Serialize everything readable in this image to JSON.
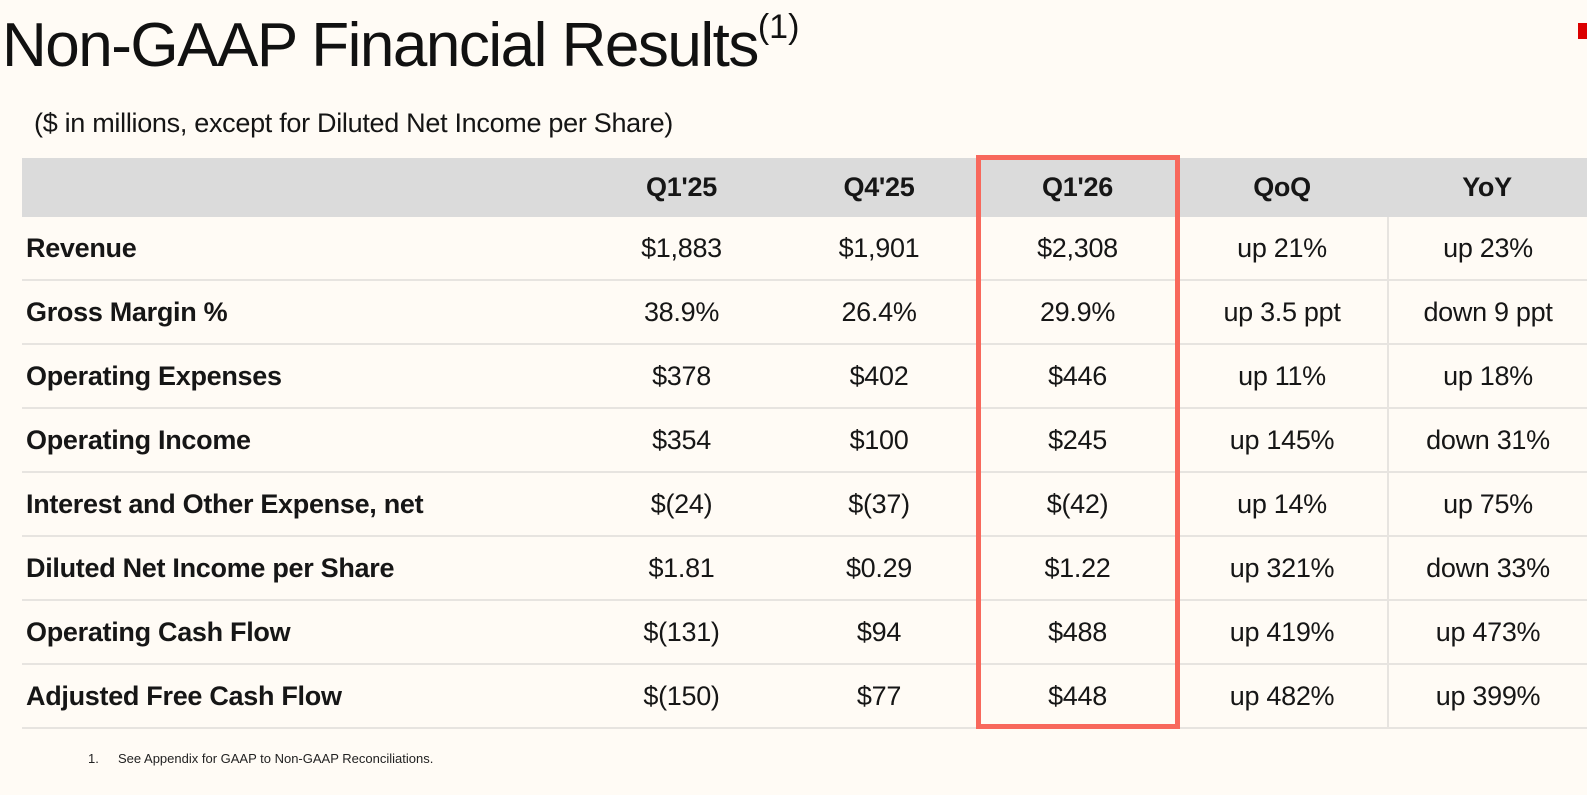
{
  "header": {
    "title": "Non-GAAP Financial Results",
    "superscript": "(1)",
    "subtitle": "($ in millions, except for Diluted Net Income per Share)"
  },
  "chart_data": {
    "type": "table",
    "title": "Non-GAAP Financial Results (1)",
    "unit_note": "$ in millions, except for Diluted Net Income per Share",
    "columns": [
      "",
      "Q1'25",
      "Q4'25",
      "Q1'26",
      "QoQ",
      "YoY"
    ],
    "highlighted_column": "Q1'26",
    "rows": [
      [
        "Revenue",
        "$1,883",
        "$1,901",
        "$2,308",
        "up 21%",
        "up 23%"
      ],
      [
        "Gross Margin %",
        "38.9%",
        "26.4%",
        "29.9%",
        "up 3.5 ppt",
        "down 9 ppt"
      ],
      [
        "Operating Expenses",
        "$378",
        "$402",
        "$446",
        "up 11%",
        "up 18%"
      ],
      [
        "Operating Income",
        "$354",
        "$100",
        "$245",
        "up 145%",
        "down 31%"
      ],
      [
        "Interest and Other Expense, net",
        "$(24)",
        "$(37)",
        "$(42)",
        "up 14%",
        "up 75%"
      ],
      [
        "Diluted Net Income per Share",
        "$1.81",
        "$0.29",
        "$1.22",
        "up 321%",
        "down 33%"
      ],
      [
        "Operating Cash Flow",
        "$(131)",
        "$94",
        "$488",
        "up 419%",
        "up 473%"
      ],
      [
        "Adjusted Free Cash Flow",
        "$(150)",
        "$77",
        "$448",
        "up 482%",
        "up 399%"
      ]
    ]
  },
  "footnote": {
    "number": "1.",
    "text": "See Appendix for GAAP to Non-GAAP Reconciliations."
  },
  "colors": {
    "background": "#FFFBF5",
    "header_band": "#DBDBDB",
    "row_divider": "#E7E4E0",
    "highlight_border": "#F8685C",
    "corner_accent": "#DB0000",
    "text": "#161616"
  }
}
